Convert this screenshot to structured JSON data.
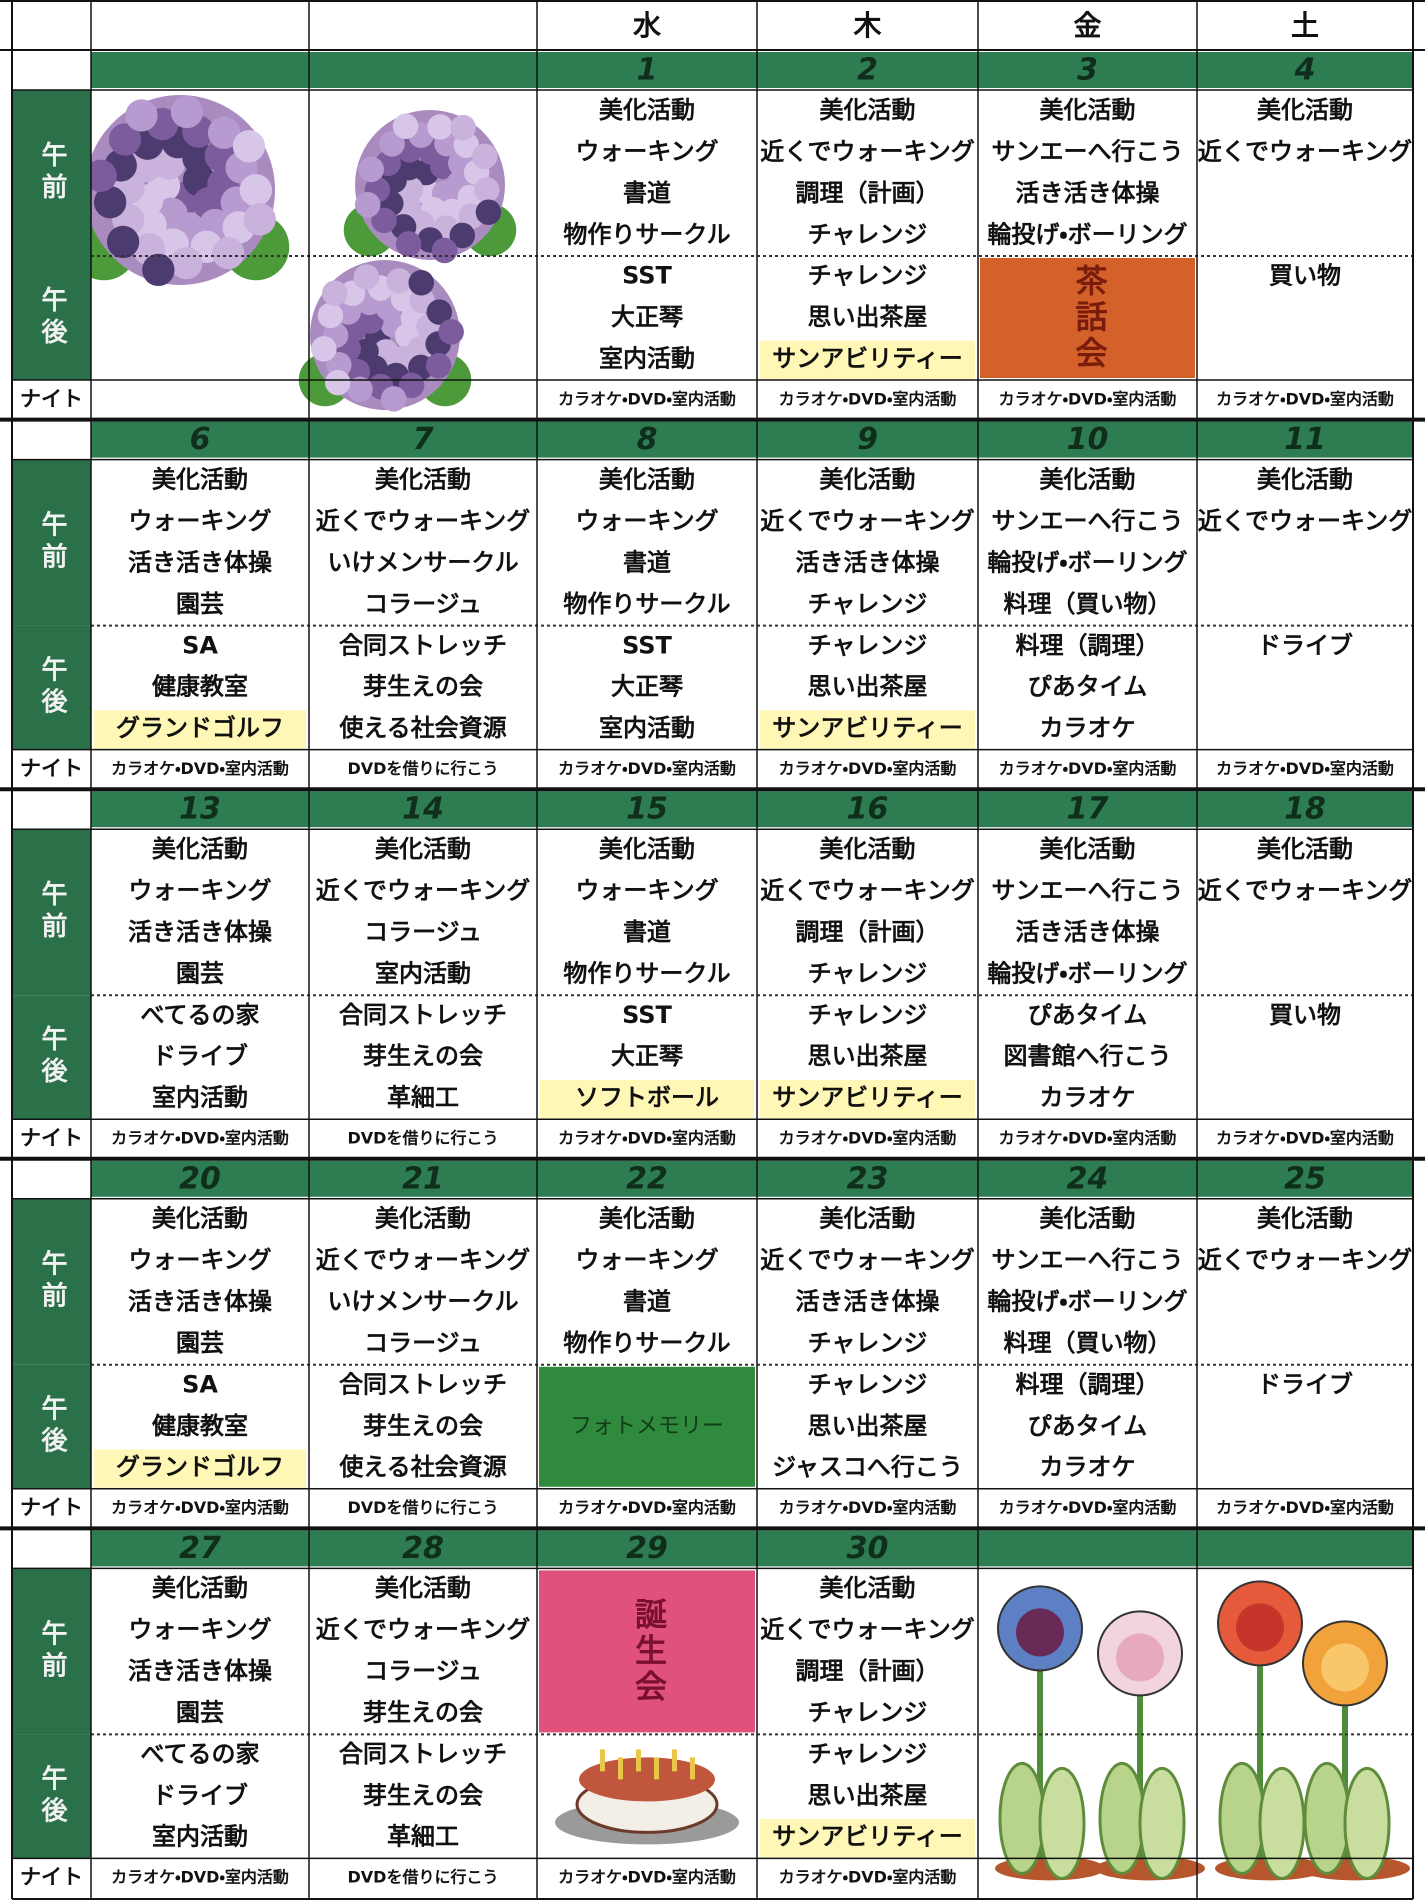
{
  "day_headers": [
    null,
    null,
    "水",
    "木",
    "金",
    "土"
  ],
  "row_labels": {
    "am": "午前",
    "pm": "午後",
    "night": "ナイト"
  },
  "weeks": [
    {
      "dates": [
        null,
        null,
        "1",
        "2",
        "3",
        "4"
      ],
      "cells": [
        null,
        null,
        {
          "am": [
            "美化活動",
            "ウォーキング",
            "書道",
            "物作りサークル"
          ],
          "pm": [
            "SST",
            "大正琴",
            "室内活動"
          ],
          "night": "カラオケ・DVD・室内活動"
        },
        {
          "am": [
            "美化活動",
            "近くでウォーキング",
            "調理（計画）",
            "チャレンジ"
          ],
          "pm": [
            "チャレンジ",
            "思い出茶屋",
            {
              "text": "サンアビリティー",
              "highlight": "#fff7b5"
            }
          ],
          "night": "カラオケ・DVD・室内活動"
        },
        {
          "am": [
            "美化活動",
            "サンエーへ行こう",
            "活き活き体操",
            "輪投げ・ボーリング"
          ],
          "pm_block": {
            "text": "茶話会",
            "color": "#d4602a",
            "text_color": "#7a1c0c",
            "vertical": true
          },
          "night": "カラオケ・DVD・室内活動"
        },
        {
          "am": [
            "美化活動",
            "近くでウォーキング"
          ],
          "pm": [
            "買い物"
          ],
          "night": "カラオケ・DVD・室内活動"
        }
      ]
    },
    {
      "dates": [
        "6",
        "7",
        "8",
        "9",
        "10",
        "11"
      ],
      "cells": [
        {
          "am": [
            "美化活動",
            "ウォーキング",
            "活き活き体操",
            "園芸"
          ],
          "pm": [
            "SA",
            "健康教室",
            {
              "text": "グランドゴルフ",
              "highlight": "#fff7b5"
            }
          ],
          "night": "カラオケ・DVD・室内活動"
        },
        {
          "am": [
            "美化活動",
            "近くでウォーキング",
            "いけメンサークル",
            "コラージュ"
          ],
          "pm": [
            "合同ストレッチ",
            "芽生えの会",
            "使える社会資源"
          ],
          "night": "DVDを借りに行こう"
        },
        {
          "am": [
            "美化活動",
            "ウォーキング",
            "書道",
            "物作りサークル"
          ],
          "pm": [
            "SST",
            "大正琴",
            "室内活動"
          ],
          "night": "カラオケ・DVD・室内活動"
        },
        {
          "am": [
            "美化活動",
            "近くでウォーキング",
            "活き活き体操",
            "チャレンジ"
          ],
          "pm": [
            "チャレンジ",
            "思い出茶屋",
            {
              "text": "サンアビリティー",
              "highlight": "#fff7b5"
            }
          ],
          "night": "カラオケ・DVD・室内活動"
        },
        {
          "am": [
            "美化活動",
            "サンエーへ行こう",
            "輪投げ・ボーリング",
            "料理（買い物）"
          ],
          "pm": [
            "料理（調理）",
            "ぴあタイム",
            "カラオケ"
          ],
          "night": "カラオケ・DVD・室内活動"
        },
        {
          "am": [
            "美化活動",
            "近くでウォーキング"
          ],
          "pm": [
            "ドライブ"
          ],
          "night": "カラオケ・DVD・室内活動"
        }
      ]
    },
    {
      "dates": [
        "13",
        "14",
        "15",
        "16",
        "17",
        "18"
      ],
      "cells": [
        {
          "am": [
            "美化活動",
            "ウォーキング",
            "活き活き体操",
            "園芸"
          ],
          "pm": [
            "べてるの家",
            "ドライブ",
            "室内活動"
          ],
          "night": "カラオケ・DVD・室内活動"
        },
        {
          "am": [
            "美化活動",
            "近くでウォーキング",
            "コラージュ",
            "室内活動"
          ],
          "pm": [
            "合同ストレッチ",
            "芽生えの会",
            "革細工"
          ],
          "night": "DVDを借りに行こう"
        },
        {
          "am": [
            "美化活動",
            "ウォーキング",
            "書道",
            "物作りサークル"
          ],
          "pm": [
            "SST",
            "大正琴",
            {
              "text": "ソフトボール",
              "highlight": "#fff7b5"
            }
          ],
          "night": "カラオケ・DVD・室内活動"
        },
        {
          "am": [
            "美化活動",
            "近くでウォーキング",
            "調理（計画）",
            "チャレンジ"
          ],
          "pm": [
            "チャレンジ",
            "思い出茶屋",
            {
              "text": "サンアビリティー",
              "highlight": "#fff7b5"
            }
          ],
          "night": "カラオケ・DVD・室内活動"
        },
        {
          "am": [
            "美化活動",
            "サンエーへ行こう",
            "活き活き体操",
            "輪投げ・ボーリング"
          ],
          "pm": [
            "ぴあタイム",
            "図書館へ行こう",
            "カラオケ"
          ],
          "night": "カラオケ・DVD・室内活動"
        },
        {
          "am": [
            "美化活動",
            "近くでウォーキング"
          ],
          "pm": [
            "買い物"
          ],
          "night": "カラオケ・DVD・室内活動"
        }
      ]
    },
    {
      "dates": [
        "20",
        "21",
        "22",
        "23",
        "24",
        "25"
      ],
      "cells": [
        {
          "am": [
            "美化活動",
            "ウォーキング",
            "活き活き体操",
            "園芸"
          ],
          "pm": [
            "SA",
            "健康教室",
            {
              "text": "グランドゴルフ",
              "highlight": "#fff7b5"
            }
          ],
          "night": "カラオケ・DVD・室内活動"
        },
        {
          "am": [
            "美化活動",
            "近くでウォーキング",
            "いけメンサークル",
            "コラージュ"
          ],
          "pm": [
            "合同ストレッチ",
            "芽生えの会",
            "使える社会資源"
          ],
          "night": "DVDを借りに行こう"
        },
        {
          "am": [
            "美化活動",
            "ウォーキング",
            "書道",
            "物作りサークル"
          ],
          "pm_block": {
            "text": "フォトメモリー",
            "color": "#2f8a3e",
            "text_color": "#123d18",
            "vertical": false
          },
          "night": "カラオケ・DVD・室内活動"
        },
        {
          "am": [
            "美化活動",
            "近くでウォーキング",
            "活き活き体操",
            "チャレンジ"
          ],
          "pm": [
            "チャレンジ",
            "思い出茶屋",
            "ジャスコへ行こう"
          ],
          "night": "カラオケ・DVD・室内活動"
        },
        {
          "am": [
            "美化活動",
            "サンエーへ行こう",
            "輪投げ・ボーリング",
            "料理（買い物）"
          ],
          "pm": [
            "料理（調理）",
            "ぴあタイム",
            "カラオケ"
          ],
          "night": "カラオケ・DVD・室内活動"
        },
        {
          "am": [
            "美化活動",
            "近くでウォーキング"
          ],
          "pm": [
            "ドライブ"
          ],
          "night": "カラオケ・DVD・室内活動"
        }
      ]
    },
    {
      "dates": [
        "27",
        "28",
        "29",
        "30",
        null,
        null
      ],
      "cells": [
        {
          "am": [
            "美化活動",
            "ウォーキング",
            "活き活き体操",
            "園芸"
          ],
          "pm": [
            "べてるの家",
            "ドライブ",
            "室内活動"
          ],
          "night": "カラオケ・DVD・室内活動"
        },
        {
          "am": [
            "美化活動",
            "近くでウォーキング",
            "コラージュ",
            "芽生えの会"
          ],
          "pm": [
            "合同ストレッチ",
            "芽生えの会",
            "革細工"
          ],
          "night": "DVDを借りに行こう"
        },
        {
          "am_block": {
            "text": "誕生会",
            "color": "#e0527c",
            "text_color": "#7a1030",
            "vertical": true
          },
          "night": "カラオケ・DVD・室内活動"
        },
        {
          "am": [
            "美化活動",
            "近くでウォーキング",
            "調理（計画）",
            "チャレンジ"
          ],
          "pm": [
            "チャレンジ",
            "思い出茶屋",
            {
              "text": "サンアビリティー",
              "highlight": "#fff7b5"
            }
          ],
          "night": "カラオケ・DVD・室内活動"
        },
        null,
        null
      ]
    }
  ]
}
